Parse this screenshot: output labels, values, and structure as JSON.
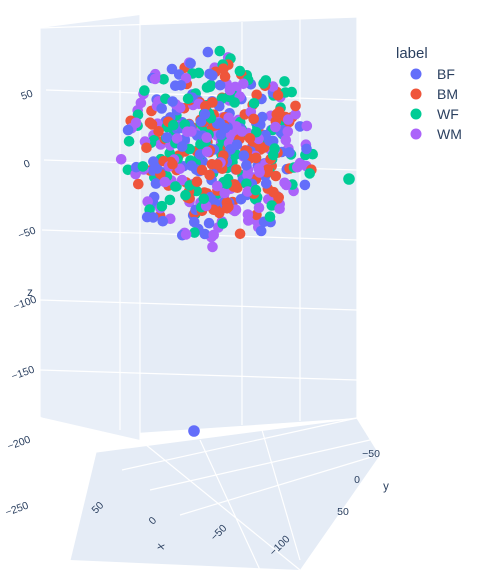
{
  "chart_data": {
    "type": "scatter",
    "dimensions": "3d",
    "legend": {
      "title": "label",
      "placement": "top-right",
      "entries": [
        {
          "name": "BF",
          "color": "#636efa"
        },
        {
          "name": "BM",
          "color": "#ef553b"
        },
        {
          "name": "WF",
          "color": "#00cc96"
        },
        {
          "name": "WM",
          "color": "#ab63fa"
        }
      ]
    },
    "axes": {
      "x": {
        "label": "x",
        "ticks": [
          "50",
          "0",
          "−50",
          "−100"
        ]
      },
      "y": {
        "label": "y",
        "ticks": [
          "−50",
          "0",
          "50"
        ]
      },
      "z": {
        "label": "z",
        "ticks": [
          "50",
          "0",
          "−50",
          "−100",
          "−150",
          "−200",
          "−250"
        ],
        "range": [
          -280,
          90
        ]
      }
    },
    "series": [
      {
        "name": "BF",
        "color": "#636efa",
        "note_outliers": [
          {
            "z": -240
          }
        ]
      },
      {
        "name": "BM",
        "color": "#ef553b"
      },
      {
        "name": "WF",
        "color": "#00cc96",
        "note_outliers": [
          {
            "z": -7
          }
        ]
      },
      {
        "name": "WM",
        "color": "#ab63fa"
      }
    ],
    "cluster": {
      "z_range": [
        -80,
        85
      ],
      "points_per_series": 130
    },
    "grid": true
  }
}
